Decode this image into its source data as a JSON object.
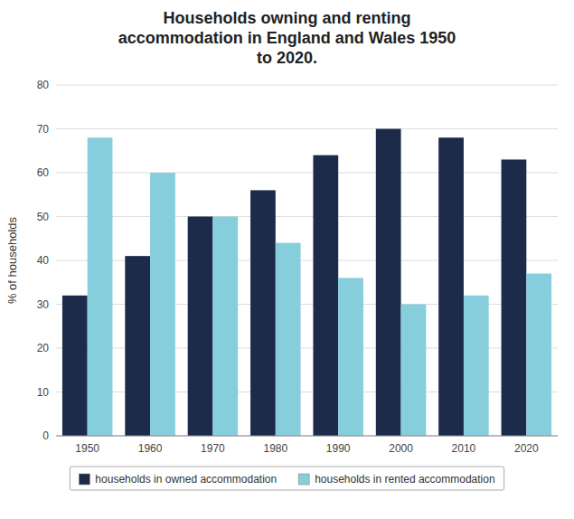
{
  "chart_data": {
    "type": "bar",
    "title": "Households owning and renting\naccommodation in England and Wales 1950\nto 2020.",
    "ylabel": "% of households",
    "categories": [
      "1950",
      "1960",
      "1970",
      "1980",
      "1990",
      "2000",
      "2010",
      "2020"
    ],
    "series": [
      {
        "name": "households in owned accommodation",
        "color": "#1c2b4a",
        "values": [
          32,
          41,
          50,
          56,
          64,
          70,
          68,
          63
        ]
      },
      {
        "name": "households in rented accommodation",
        "color": "#87cedc",
        "values": [
          68,
          60,
          50,
          44,
          36,
          30,
          32,
          37
        ]
      }
    ],
    "ylim": [
      0,
      80
    ],
    "yticks": [
      0,
      10,
      20,
      30,
      40,
      50,
      60,
      70,
      80
    ],
    "grid": true,
    "legend": "bottom"
  }
}
